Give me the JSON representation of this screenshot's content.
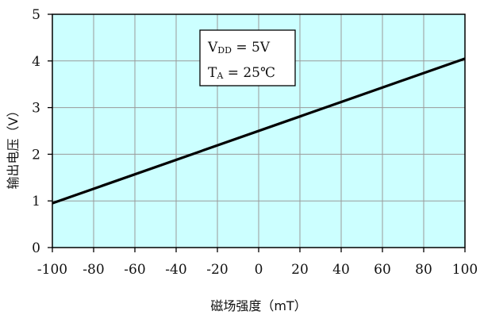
{
  "chart_data": {
    "type": "line",
    "xlabel": "磁场强度（mT）",
    "ylabel": "输出电压（V）",
    "xlim": [
      -100,
      100
    ],
    "ylim": [
      0,
      5
    ],
    "x_ticks": [
      -100,
      -80,
      -60,
      -40,
      -20,
      0,
      20,
      40,
      60,
      80,
      100
    ],
    "y_ticks": [
      0,
      1,
      2,
      3,
      4,
      5
    ],
    "grid": true,
    "background_color": "#ccffff",
    "line_color": "#000000",
    "series": [
      {
        "x": [
          -100,
          100
        ],
        "y": [
          0.95,
          4.05
        ]
      }
    ],
    "annotation": {
      "line1": "V DD = 5V",
      "line2": "T A = 25℃",
      "line1_main": "V",
      "line1_sub": "DD",
      "line1_rest": " = 5V",
      "line2_main": "T",
      "line2_sub": "A",
      "line2_rest": " = 25℃"
    }
  }
}
